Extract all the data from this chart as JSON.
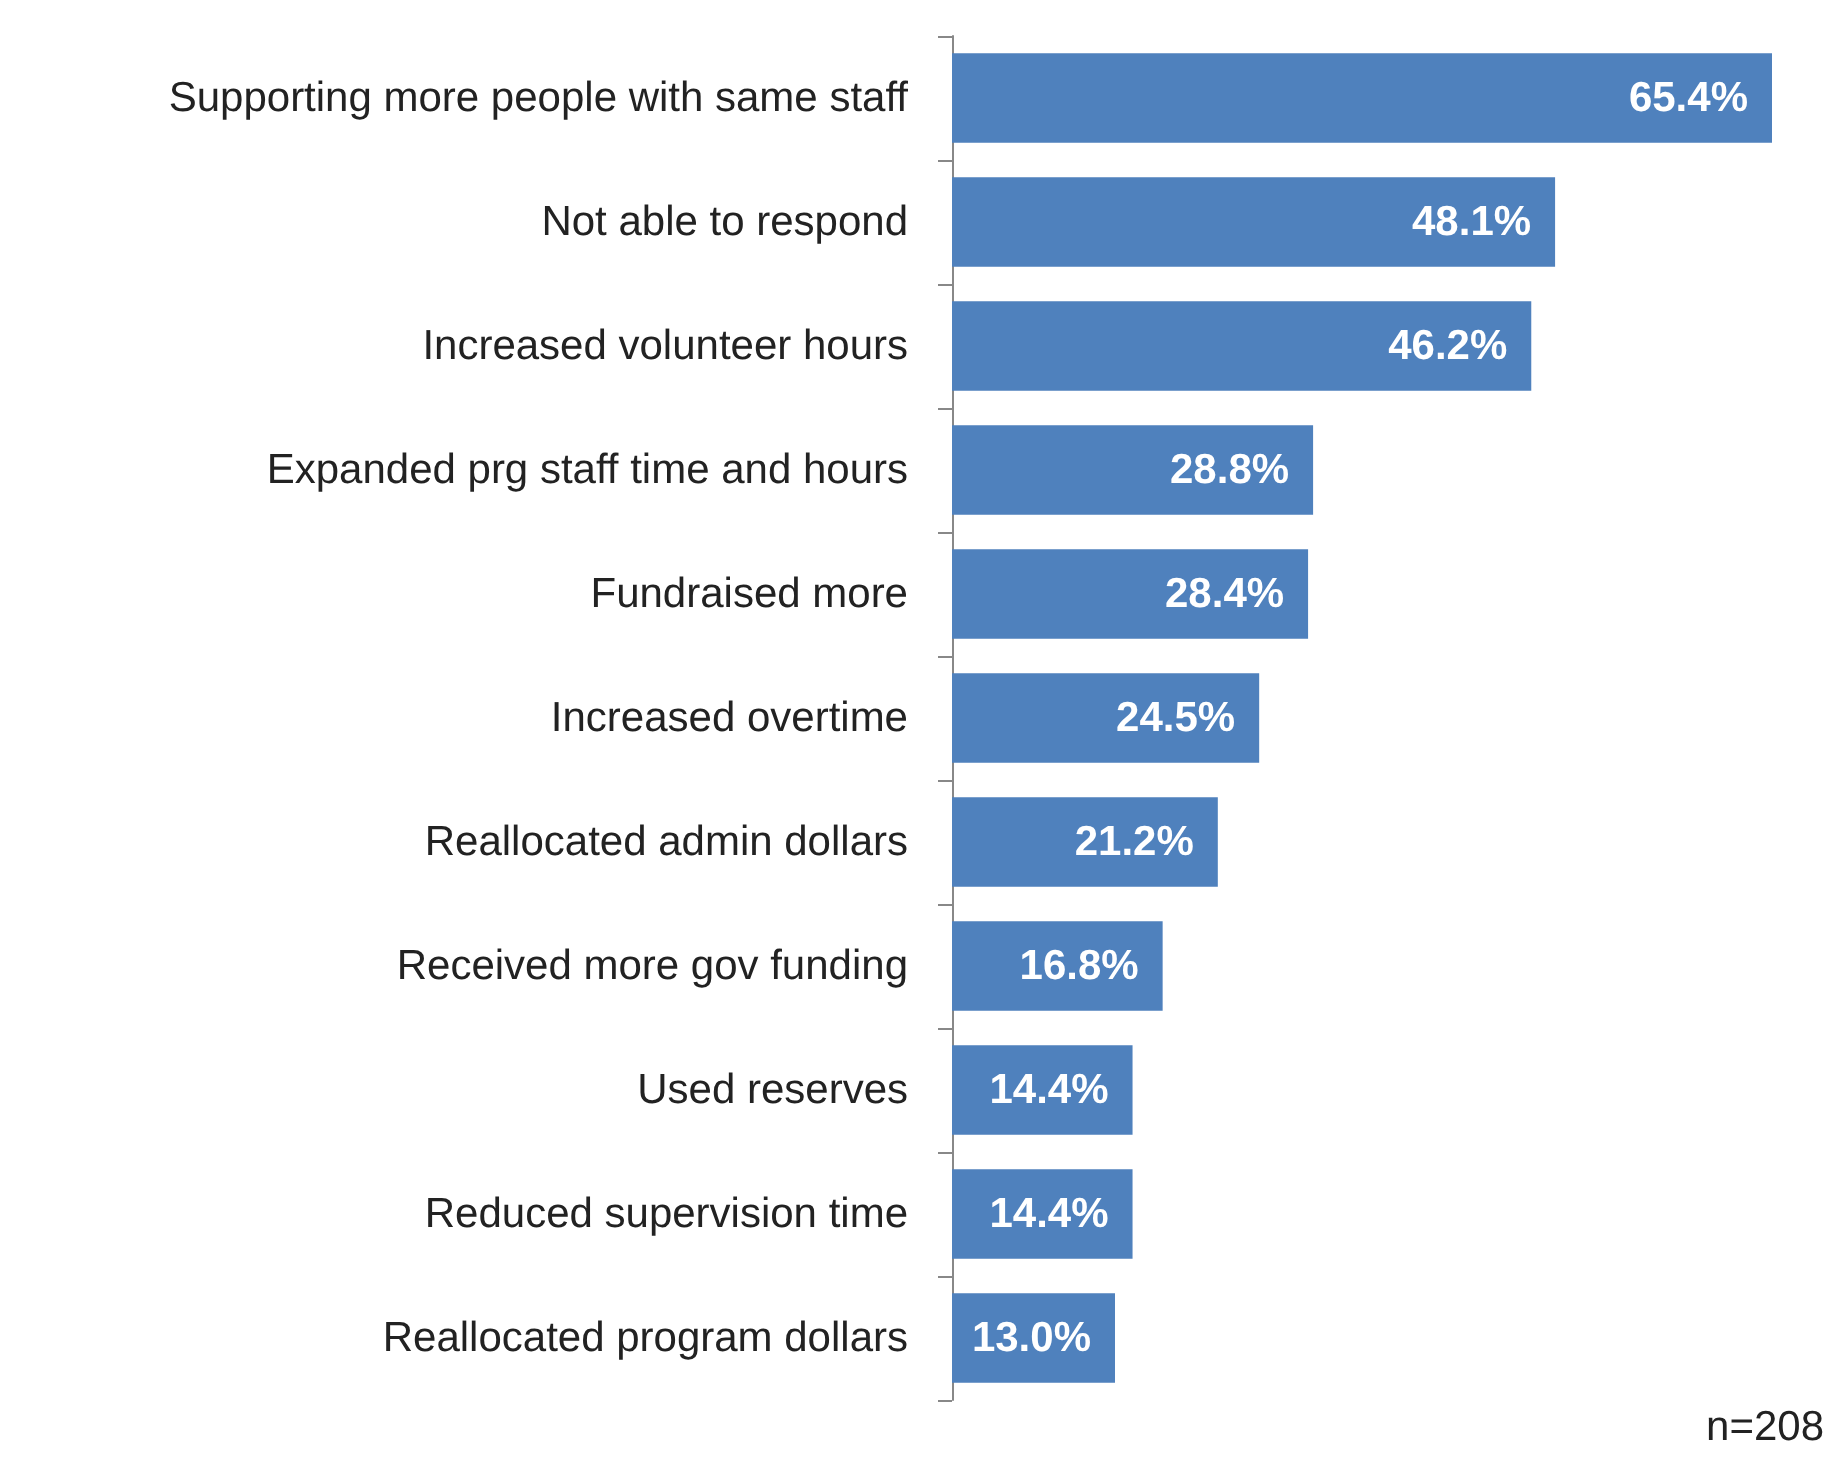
{
  "chart_data": {
    "type": "bar",
    "orientation": "horizontal",
    "categories": [
      "Supporting more people with same staff",
      "Not able to respond",
      "Increased volunteer hours",
      "Expanded prg staff time and hours",
      "Fundraised more",
      "Increased overtime",
      "Reallocated admin dollars",
      "Received more gov funding",
      "Used reserves",
      "Reduced supervision time",
      "Reallocated program dollars"
    ],
    "values": [
      65.4,
      48.1,
      46.2,
      28.8,
      28.4,
      24.5,
      21.2,
      16.8,
      14.4,
      14.4,
      13.0
    ],
    "value_labels": [
      "65.4%",
      "48.1%",
      "46.2%",
      "28.8%",
      "28.4%",
      "24.5%",
      "21.2%",
      "16.8%",
      "14.4%",
      "14.4%",
      "13.0%"
    ],
    "color": "#4f81bd",
    "tick_labels": "y",
    "annotations": [
      "n=208"
    ]
  }
}
